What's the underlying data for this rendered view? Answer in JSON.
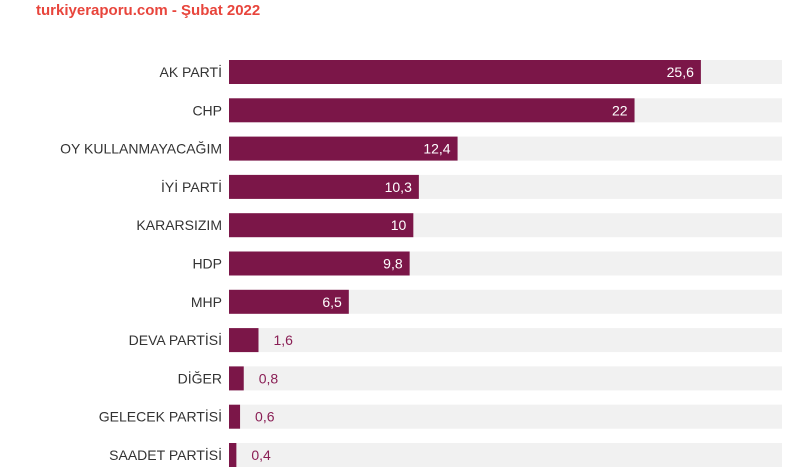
{
  "header": {
    "source": "turkiyeraporu.com - Şubat 2022"
  },
  "chart_data": {
    "type": "bar",
    "orientation": "horizontal",
    "title": "turkiyeraporu.com - Şubat 2022",
    "categories": [
      "AK PARTİ",
      "CHP",
      "OY KULLANMAYACAĞIM",
      "İYİ PARTİ",
      "KARARSIZIM",
      "HDP",
      "MHP",
      "DEVA PARTİSİ",
      "DİĞER",
      "GELECEK PARTİSİ",
      "SAADET PARTİSİ"
    ],
    "values": [
      25.6,
      22,
      12.4,
      10.3,
      10,
      9.8,
      6.5,
      1.6,
      0.8,
      0.6,
      0.4
    ],
    "value_labels": [
      "25,6",
      "22",
      "12,4",
      "10,3",
      "10",
      "9,8",
      "6,5",
      "1,6",
      "0,8",
      "0,6",
      "0,4"
    ],
    "xlim": [
      0,
      30
    ],
    "xlabel": "",
    "ylabel": "",
    "grid": false,
    "legend": "none",
    "colors": {
      "bar": "#7b1648",
      "track": "#f1f1f1",
      "label_text": "#333333",
      "value_in": "#ffffff",
      "value_out": "#8a1f55",
      "header": "#e8453c"
    }
  }
}
